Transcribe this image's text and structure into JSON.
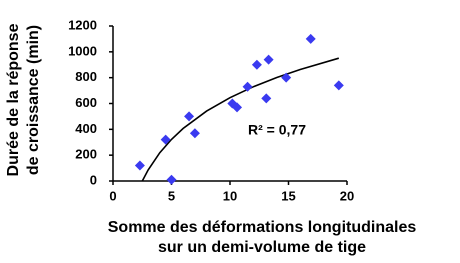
{
  "chart_data": {
    "type": "scatter",
    "x_label": [
      "Somme des déformations longitudinales",
      "sur un demi-volume de tige"
    ],
    "y_label": [
      "Durée de la réponse",
      "de croissance (min)"
    ],
    "annotation": "R² = 0,77",
    "xlim": [
      0,
      20
    ],
    "xticks": [
      0,
      5,
      10,
      15,
      20
    ],
    "ylim": [
      0,
      1200
    ],
    "yticks": [
      0,
      200,
      400,
      600,
      800,
      1000,
      1200
    ],
    "grid": false,
    "series": [
      {
        "color": "#3a3af0",
        "x": [
          2.3,
          4.5,
          5,
          6.5,
          7,
          10.2,
          10.6,
          11.5,
          12.3,
          13.1,
          13.3,
          14.8,
          16.9,
          19.3
        ],
        "values": [
          120,
          320,
          10,
          500,
          370,
          600,
          570,
          730,
          900,
          640,
          940,
          800,
          1100,
          740
        ]
      }
    ],
    "trendline": {
      "color": "#000000",
      "x": [
        2.5,
        3,
        4,
        5,
        6,
        8,
        10,
        12,
        14,
        16,
        19.3
      ],
      "values": [
        0,
        85,
        219,
        322,
        407,
        541,
        645,
        730,
        801,
        863,
        951
      ]
    }
  }
}
